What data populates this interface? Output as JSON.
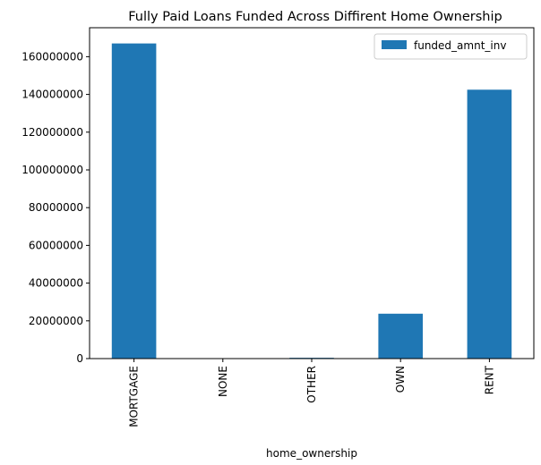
{
  "chart_data": {
    "type": "bar",
    "title": "Fully Paid Loans Funded Across Diffirent Home Ownership",
    "xlabel": "home_ownership",
    "ylabel": "",
    "categories": [
      "MORTGAGE",
      "NONE",
      "OTHER",
      "OWN",
      "RENT"
    ],
    "series": [
      {
        "name": "funded_amnt_inv",
        "values": [
          167000000,
          0,
          450000,
          23800000,
          142500000
        ],
        "color": "#1f77b4"
      }
    ],
    "ylim": [
      0,
      175350000
    ],
    "yticks": [
      0,
      20000000,
      40000000,
      60000000,
      80000000,
      100000000,
      120000000,
      140000000,
      160000000
    ],
    "ytick_labels": [
      "0",
      "20000000",
      "40000000",
      "60000000",
      "80000000",
      "100000000",
      "120000000",
      "140000000",
      "160000000"
    ],
    "grid": false,
    "legend_position": "top-right"
  }
}
